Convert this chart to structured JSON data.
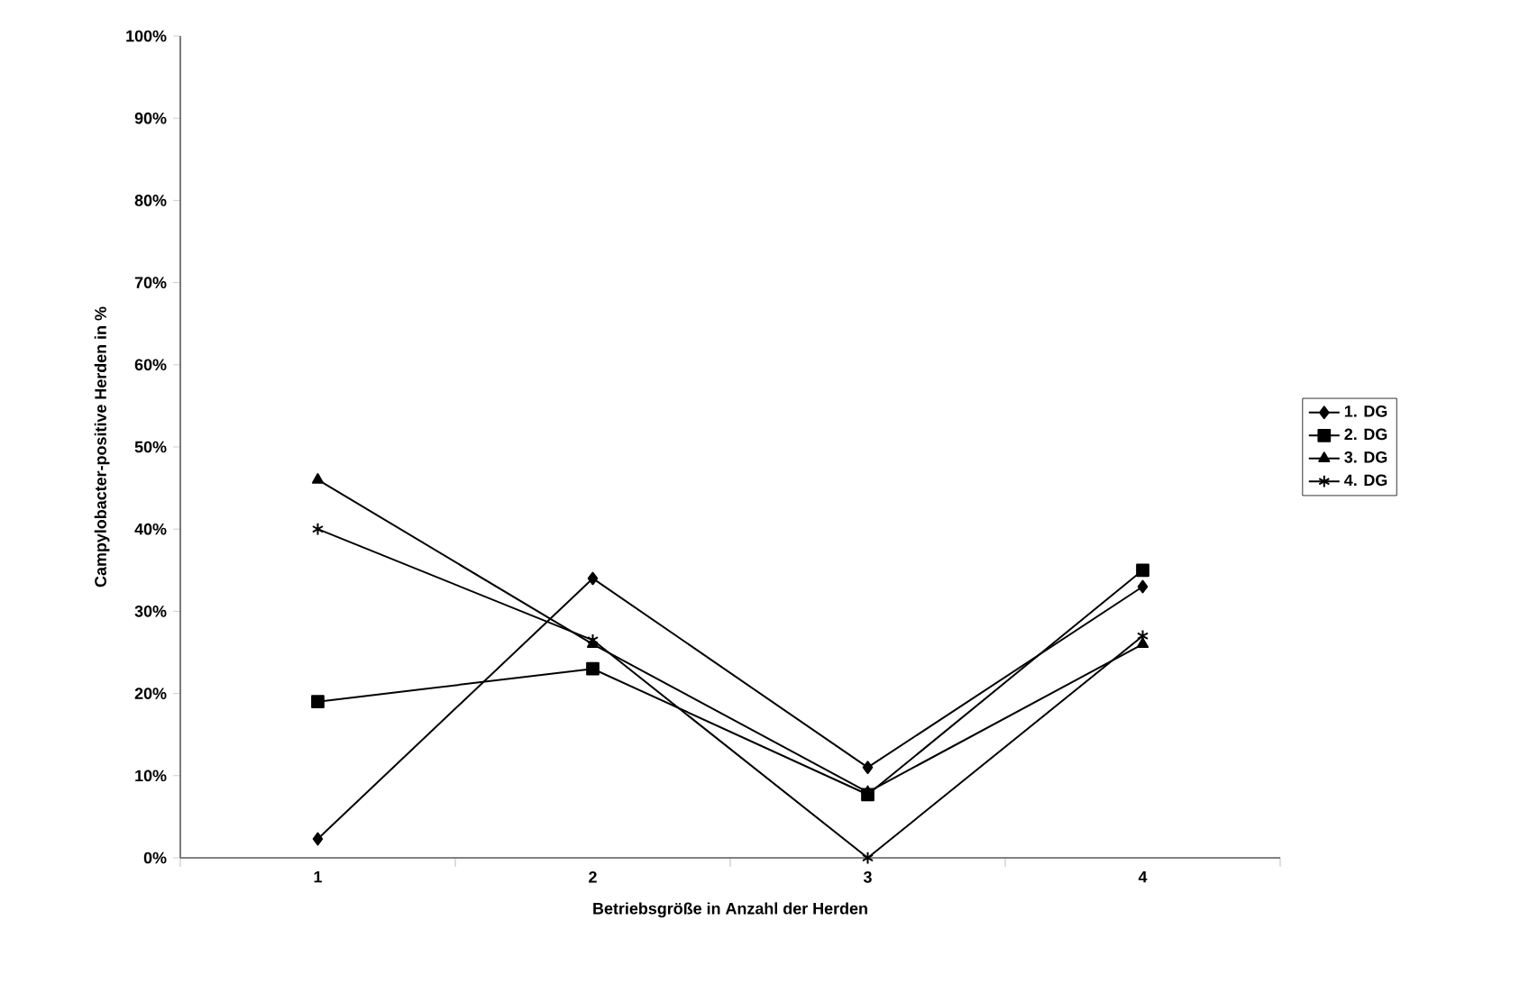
{
  "chart_data": {
    "type": "line",
    "xlabel": "Betriebsgröße in Anzahl der Herden",
    "ylabel": "Campylobacter-positive Herden in %",
    "categories": [
      "1",
      "2",
      "3",
      "4"
    ],
    "series": [
      {
        "name": "1. DG",
        "color": "#000000",
        "marker": "diamond",
        "values": [
          2.3,
          34,
          11,
          33
        ]
      },
      {
        "name": "2. DG",
        "color": "#000000",
        "marker": "square",
        "values": [
          19,
          23,
          7.7,
          35
        ]
      },
      {
        "name": "3. DG",
        "color": "#000000",
        "marker": "triangle",
        "values": [
          46,
          26,
          8,
          26
        ]
      },
      {
        "name": "4. DG",
        "color": "#000000",
        "marker": "cross",
        "values": [
          40,
          26.5,
          0,
          27
        ]
      }
    ],
    "ylim": [
      0,
      100
    ],
    "yticks": [
      {
        "value": 0,
        "label": "0%"
      },
      {
        "value": 10,
        "label": "10%"
      },
      {
        "value": 20,
        "label": "20%"
      },
      {
        "value": 30,
        "label": "30%"
      },
      {
        "value": 40,
        "label": "40%"
      },
      {
        "value": 50,
        "label": "50%"
      },
      {
        "value": 60,
        "label": "60%"
      },
      {
        "value": 70,
        "label": "70%"
      },
      {
        "value": 80,
        "label": "80%"
      },
      {
        "value": 90,
        "label": "90%"
      },
      {
        "value": 100,
        "label": "100%"
      }
    ],
    "grid": false,
    "legend": "right",
    "line_style": "solid"
  }
}
